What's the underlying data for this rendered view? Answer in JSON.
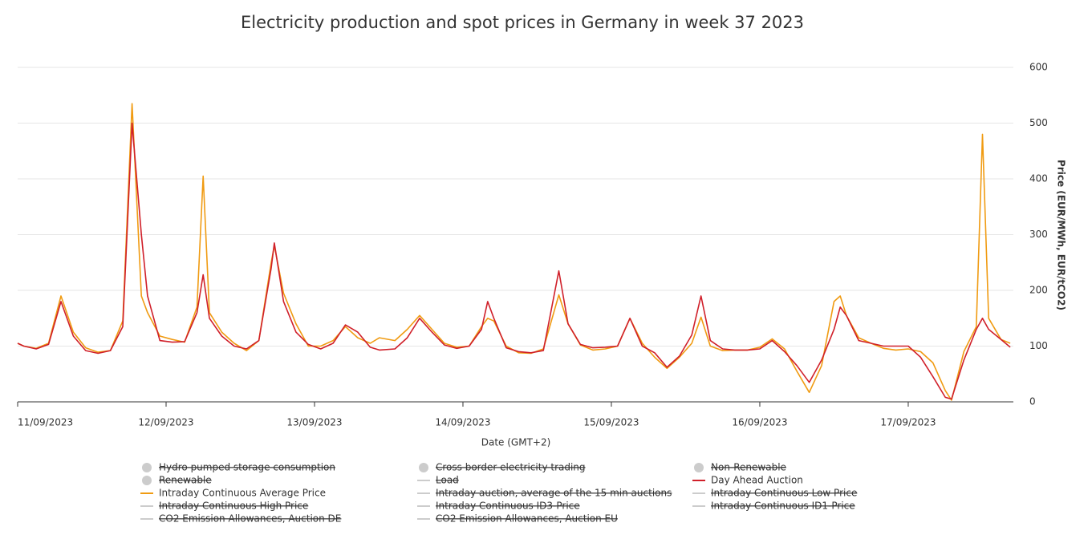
{
  "chart_data": {
    "type": "line",
    "title": "Electricity production and spot prices in Germany in week 37 2023",
    "x_label": "Date (GMT+2)",
    "y_label": "Price (EUR/MWh, EUR/tCO2)",
    "x": [
      0,
      1,
      3,
      5,
      7,
      9,
      11,
      13,
      15,
      17,
      18.5,
      20,
      21,
      23,
      25,
      27,
      29,
      30,
      31,
      33,
      35,
      37,
      39,
      41,
      41.5,
      43,
      45,
      47,
      49,
      51,
      53,
      55,
      57,
      58.5,
      61,
      63,
      65,
      67,
      69,
      71,
      73,
      75,
      76,
      77,
      79,
      81,
      83,
      85,
      87.5,
      89,
      91,
      93,
      95,
      97,
      99,
      101,
      103,
      105,
      107,
      109,
      110.5,
      112,
      114,
      116,
      118,
      120,
      122,
      124,
      126,
      128,
      130,
      132,
      133,
      134,
      136,
      138,
      140,
      142,
      144,
      146,
      148,
      150,
      151,
      153,
      155,
      156,
      157,
      159,
      160.5
    ],
    "series": [
      {
        "name": "Intraday Continuous Average Price",
        "color": "#f09b12",
        "values": [
          105,
          100,
          96,
          105,
          190,
          125,
          97,
          89,
          92,
          145,
          535,
          190,
          160,
          118,
          112,
          107,
          170,
          405,
          160,
          125,
          105,
          92,
          110,
          250,
          280,
          195,
          140,
          100,
          100,
          110,
          135,
          115,
          105,
          115,
          110,
          130,
          155,
          130,
          105,
          98,
          100,
          135,
          150,
          145,
          100,
          88,
          87,
          95,
          192,
          140,
          102,
          93,
          95,
          100,
          150,
          105,
          80,
          60,
          80,
          105,
          152,
          100,
          92,
          93,
          93,
          98,
          113,
          95,
          55,
          17,
          65,
          180,
          190,
          155,
          115,
          105,
          96,
          93,
          95,
          90,
          70,
          20,
          3,
          90,
          135,
          480,
          150,
          112,
          105
        ]
      },
      {
        "name": "Day Ahead Auction",
        "color": "#d0202a",
        "values": [
          105,
          100,
          95,
          103,
          180,
          118,
          92,
          87,
          92,
          135,
          500,
          300,
          190,
          110,
          107,
          108,
          160,
          228,
          150,
          118,
          100,
          95,
          110,
          240,
          285,
          180,
          125,
          103,
          95,
          105,
          138,
          125,
          98,
          93,
          95,
          115,
          150,
          125,
          102,
          96,
          100,
          130,
          180,
          150,
          97,
          90,
          88,
          92,
          235,
          140,
          103,
          97,
          98,
          100,
          150,
          100,
          88,
          62,
          82,
          120,
          190,
          110,
          95,
          93,
          93,
          95,
          110,
          90,
          65,
          35,
          75,
          130,
          170,
          155,
          110,
          105,
          100,
          100,
          100,
          80,
          45,
          8,
          5,
          75,
          130,
          150,
          130,
          112,
          98
        ]
      }
    ],
    "xlim": [
      0,
      161
    ],
    "xticks": [
      {
        "value": 0,
        "label": "11/09/2023"
      },
      {
        "value": 24,
        "label": "12/09/2023"
      },
      {
        "value": 48,
        "label": "13/09/2023"
      },
      {
        "value": 72,
        "label": "14/09/2023"
      },
      {
        "value": 96,
        "label": "15/09/2023"
      },
      {
        "value": 120,
        "label": "16/09/2023"
      },
      {
        "value": 144,
        "label": "17/09/2023"
      }
    ],
    "ylim": [
      0,
      600
    ],
    "yticks": [
      0,
      100,
      200,
      300,
      400,
      500,
      600
    ],
    "grid": true,
    "hidden_legend": [
      {
        "name": "Hydro pumped storage consumption",
        "symbol": "circle"
      },
      {
        "name": "Cross border electricity trading",
        "symbol": "circle"
      },
      {
        "name": "Non-Renewable",
        "symbol": "circle"
      },
      {
        "name": "Renewable",
        "symbol": "circle"
      },
      {
        "name": "Load",
        "symbol": "line"
      },
      {
        "name": "Intraday auction, average of the 15 min auctions",
        "symbol": "line"
      },
      {
        "name": "Intraday Continuous Low Price",
        "symbol": "line"
      },
      {
        "name": "Intraday Continuous High Price",
        "symbol": "line"
      },
      {
        "name": "Intraday Continuous ID3-Price",
        "symbol": "line"
      },
      {
        "name": "Intraday Continuous ID1-Price",
        "symbol": "line"
      },
      {
        "name": "CO2 Emission Allowances, Auction DE",
        "symbol": "line"
      },
      {
        "name": "CO2 Emission Allowances, Auction EU",
        "symbol": "line"
      }
    ]
  }
}
